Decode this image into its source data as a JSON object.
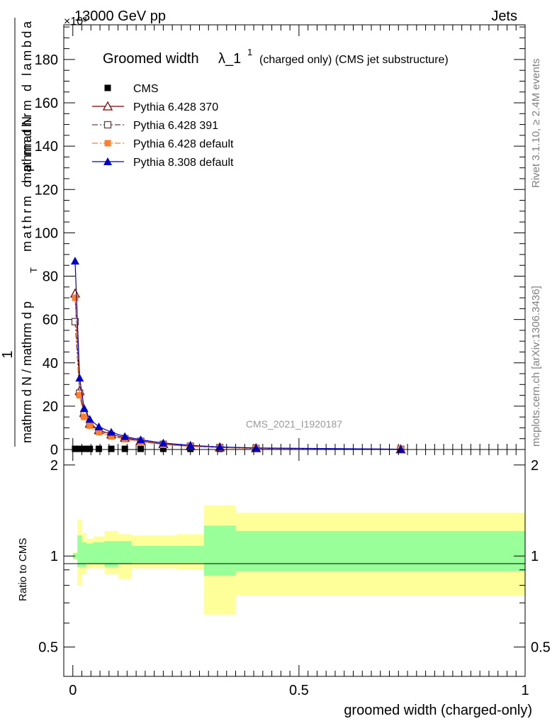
{
  "header": {
    "energy_label": "13000 GeV pp",
    "process_label": "Jets",
    "exponent_label": "×10³"
  },
  "side_labels": {
    "rivet": "Rivet 3.1.10, ≥ 2.4M events",
    "mcplots": "mcplots.cern.ch [arXiv:1306.3436]"
  },
  "watermark": "CMS_2021_I1920187",
  "chart_data": [
    {
      "type": "line",
      "title": "Groomed width λ_1¹ (charged only) (CMS jet substructure)",
      "title_main": "Groomed width",
      "title_lambda": "λ_1",
      "title_sup": "1",
      "title_rest": "(charged only) (CMS jet substructure)",
      "ylabel_numerator": "1",
      "ylabel_line1": "mathrm d N / mathrm d p",
      "ylabel_line2": "mathrm d N",
      "ylabel_line3": "mathrm d p  mathrm d lambda",
      "ylabel_sub": "T",
      "ylim": [
        0,
        196
      ],
      "yticks": [
        0,
        20,
        40,
        60,
        80,
        100,
        120,
        140,
        160,
        180
      ],
      "xlim": [
        -0.02,
        1.0
      ],
      "bin_edges": [
        0.0,
        0.01,
        0.02,
        0.03,
        0.045,
        0.07,
        0.1,
        0.13,
        0.17,
        0.23,
        0.29,
        0.36,
        0.45,
        1.0
      ],
      "legend": [
        {
          "name": "CMS",
          "color": "#000000",
          "marker": "square-filled",
          "dash": "none"
        },
        {
          "name": "Pythia 6.428 370",
          "color": "#800000",
          "marker": "triangle-open",
          "dash": "solid"
        },
        {
          "name": "Pythia 6.428 391",
          "color": "#6b4040",
          "marker": "square-open",
          "dash": "dashdot"
        },
        {
          "name": "Pythia 6.428 default",
          "color": "#ff7f2a",
          "marker": "square-filled",
          "dash": "dashdot"
        },
        {
          "name": "Pythia 8.308 default",
          "color": "#0000cc",
          "marker": "triangle-filled",
          "dash": "solid"
        }
      ],
      "series": [
        {
          "name": "CMS",
          "x": [
            0.005,
            0.015,
            0.025,
            0.0375,
            0.0575,
            0.085,
            0.115,
            0.15,
            0.2,
            0.26,
            0.325,
            0.405,
            0.725
          ],
          "values": [
            0.3,
            0.3,
            0.3,
            0.3,
            0.3,
            0.3,
            0.3,
            0.3,
            0.3,
            0.3,
            0.3,
            0.3,
            0.3
          ]
        },
        {
          "name": "Pythia 6.428 370",
          "x": [
            0.005,
            0.015,
            0.025,
            0.0375,
            0.0575,
            0.085,
            0.115,
            0.15,
            0.2,
            0.26,
            0.325,
            0.405,
            0.725
          ],
          "values": [
            72,
            27,
            17,
            12,
            9,
            7,
            5.5,
            4,
            2.5,
            1.6,
            1.0,
            0.6,
            0.1
          ]
        },
        {
          "name": "Pythia 6.428 391",
          "x": [
            0.005,
            0.015,
            0.025,
            0.0375,
            0.0575,
            0.085,
            0.115,
            0.15,
            0.2,
            0.26,
            0.325,
            0.405,
            0.725
          ],
          "values": [
            59,
            26,
            16,
            11.5,
            8.5,
            6.5,
            5,
            3.8,
            2.4,
            1.5,
            0.9,
            0.5,
            0.1
          ]
        },
        {
          "name": "Pythia 6.428 default",
          "x": [
            0.005,
            0.015,
            0.025,
            0.0375,
            0.0575,
            0.085,
            0.115,
            0.15,
            0.2,
            0.26,
            0.325,
            0.405,
            0.725
          ],
          "values": [
            70,
            25,
            15,
            11,
            8,
            6,
            4.8,
            3.5,
            2.2,
            1.4,
            0.9,
            0.5,
            0.1
          ]
        },
        {
          "name": "Pythia 8.308 default",
          "x": [
            0.005,
            0.015,
            0.025,
            0.0375,
            0.0575,
            0.085,
            0.115,
            0.15,
            0.2,
            0.26,
            0.325,
            0.405,
            0.725
          ],
          "values": [
            87,
            33,
            19,
            14,
            10.5,
            8,
            6,
            4.5,
            3,
            1.9,
            1.2,
            0.7,
            0.15
          ]
        }
      ]
    },
    {
      "type": "area",
      "ylabel": "Ratio to CMS",
      "xlabel": "groomed width (charged-only)",
      "ylim": [
        0.4,
        2.25
      ],
      "yticks": [
        0.5,
        1,
        2
      ],
      "ytick_labels": [
        "0.5",
        "1",
        "2"
      ],
      "xticks": [
        0,
        0.5,
        1
      ],
      "xtick_labels": [
        "0",
        "0.5",
        "1"
      ],
      "band_colors": {
        "outer": "#ffff99",
        "inner": "#99ff99"
      },
      "bin_edges": [
        0.0,
        0.01,
        0.02,
        0.03,
        0.045,
        0.07,
        0.1,
        0.13,
        0.17,
        0.23,
        0.29,
        0.36,
        0.45,
        1.0
      ],
      "outer_band": {
        "lo": [
          0.97,
          0.8,
          0.87,
          0.91,
          0.91,
          0.87,
          0.84,
          0.91,
          0.91,
          0.9,
          0.64,
          0.74,
          0.74
        ],
        "hi": [
          1.03,
          1.32,
          1.19,
          1.14,
          1.16,
          1.21,
          1.18,
          1.17,
          1.17,
          1.18,
          1.47,
          1.39,
          1.39
        ]
      },
      "inner_band": {
        "lo": [
          0.98,
          0.92,
          0.92,
          0.94,
          0.94,
          0.92,
          0.94,
          0.95,
          0.95,
          0.95,
          0.86,
          0.89,
          0.89
        ],
        "hi": [
          1.02,
          1.17,
          1.11,
          1.1,
          1.11,
          1.12,
          1.12,
          1.08,
          1.08,
          1.08,
          1.26,
          1.21,
          1.21
        ]
      }
    }
  ]
}
